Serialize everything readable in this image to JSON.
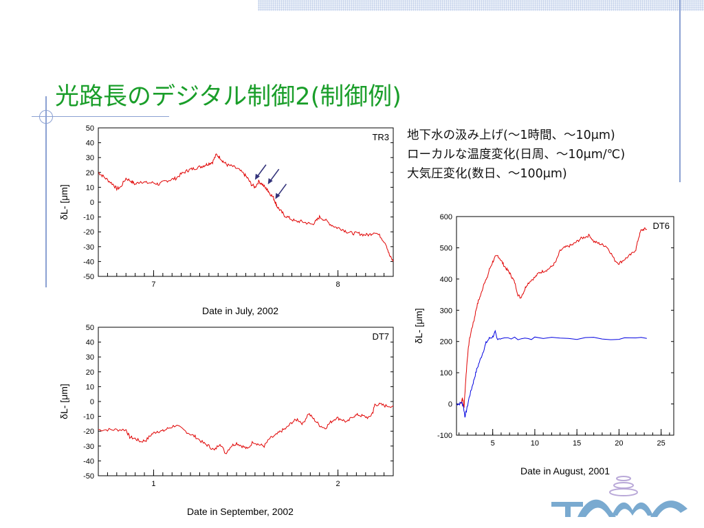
{
  "slide": {
    "title": "光路長のデジタル制御2(制御例)",
    "notes": [
      "地下水の汲み上げ(〜1時間、〜10μm)",
      "ローカルな温度変化(日周、〜10μm/℃)",
      "大気圧変化(数日、〜100μm)"
    ],
    "logo_color": "#7aaad0",
    "logo_accent": "#b9a8d8"
  },
  "chart_data": [
    {
      "type": "line",
      "id": "tr3",
      "corner_label": "TR3",
      "xlabel": "Date in July, 2002",
      "ylabel": "δL- [μm]",
      "xticks": [
        7,
        8
      ],
      "xlim": [
        6.7,
        8.3
      ],
      "ylim": [
        -50,
        50
      ],
      "yticks": [
        50,
        40,
        30,
        20,
        10,
        0,
        -10,
        -20,
        -30,
        -40,
        -50
      ],
      "grid": false,
      "color": "#e00000",
      "arrow_color": "#33337a",
      "arrows_at": [
        [
          7.55,
          15
        ],
        [
          7.62,
          12
        ],
        [
          7.66,
          2
        ]
      ],
      "series": [
        {
          "x": [
            6.7,
            6.72,
            6.75,
            6.78,
            6.8,
            6.82,
            6.85,
            6.88,
            6.9,
            6.93,
            6.96,
            7.0,
            7.03,
            7.06,
            7.09,
            7.12,
            7.15,
            7.18,
            7.2,
            7.23,
            7.26,
            7.28,
            7.3,
            7.32,
            7.34,
            7.36,
            7.38,
            7.4,
            7.43,
            7.46,
            7.49,
            7.51,
            7.53,
            7.55,
            7.57,
            7.59,
            7.61,
            7.62,
            7.63,
            7.65,
            7.66,
            7.67,
            7.69,
            7.71,
            7.74,
            7.77,
            7.8,
            7.83,
            7.86,
            7.88,
            7.9,
            7.93,
            7.96,
            7.99,
            8.02,
            8.05,
            8.08,
            8.11,
            8.14,
            8.17,
            8.2,
            8.23,
            8.26,
            8.28,
            8.3
          ],
          "y": [
            20,
            18,
            15,
            12,
            9,
            10,
            16,
            14,
            12,
            14,
            13,
            13,
            12,
            14,
            15,
            16,
            19,
            21,
            22,
            23,
            24,
            25,
            26,
            27,
            32,
            30,
            27,
            25,
            24,
            22,
            19,
            16,
            12,
            10,
            14,
            12,
            9,
            8,
            6,
            3,
            0,
            -3,
            -6,
            -9,
            -11,
            -13,
            -13,
            -14,
            -15,
            -13,
            -10,
            -12,
            -15,
            -17,
            -18,
            -20,
            -21,
            -21,
            -22,
            -22,
            -20,
            -23,
            -28,
            -36,
            -40
          ]
        }
      ]
    },
    {
      "type": "line",
      "id": "dt7",
      "corner_label": "DT7",
      "xlabel": "Date in September, 2002",
      "ylabel": "δL- [μm]",
      "xticks": [
        1,
        2
      ],
      "xlim": [
        0.7,
        2.3
      ],
      "ylim": [
        -50,
        50
      ],
      "yticks": [
        50,
        40,
        30,
        20,
        10,
        0,
        -10,
        -20,
        -30,
        -40,
        -50
      ],
      "grid": false,
      "color": "#e00000",
      "series": [
        {
          "x": [
            0.7,
            0.75,
            0.8,
            0.85,
            0.87,
            0.9,
            0.93,
            0.96,
            0.99,
            1.02,
            1.05,
            1.08,
            1.12,
            1.16,
            1.2,
            1.23,
            1.27,
            1.3,
            1.33,
            1.36,
            1.39,
            1.42,
            1.45,
            1.48,
            1.51,
            1.54,
            1.57,
            1.6,
            1.63,
            1.66,
            1.69,
            1.72,
            1.75,
            1.78,
            1.81,
            1.84,
            1.87,
            1.9,
            1.93,
            1.96,
            1.99,
            2.02,
            2.05,
            2.08,
            2.11,
            2.14,
            2.17,
            2.19,
            2.2,
            2.23,
            2.26,
            2.3
          ],
          "y": [
            -19,
            -19,
            -19,
            -19,
            -24,
            -25,
            -27,
            -26,
            -22,
            -20,
            -20,
            -18,
            -16,
            -19,
            -22,
            -24,
            -28,
            -30,
            -33,
            -28,
            -35,
            -30,
            -28,
            -30,
            -32,
            -27,
            -29,
            -30,
            -25,
            -23,
            -20,
            -18,
            -14,
            -12,
            -15,
            -8,
            -12,
            -16,
            -18,
            -14,
            -11,
            -12,
            -14,
            -10,
            -9,
            -10,
            -11,
            -7,
            -2,
            -2,
            -3,
            -3
          ]
        }
      ]
    },
    {
      "type": "line",
      "id": "dt6",
      "corner_label": "DT6",
      "xlabel": "Date in August, 2001",
      "ylabel": "δL- [μm]",
      "xticks": [
        5,
        10,
        15,
        20,
        25
      ],
      "xlim": [
        0.7,
        26.5
      ],
      "ylim": [
        -100,
        600
      ],
      "yticks": [
        600,
        500,
        400,
        300,
        200,
        100,
        0,
        -100
      ],
      "grid": false,
      "series": [
        {
          "color": "#e00000",
          "x": [
            1.2,
            1.4,
            1.6,
            1.8,
            2.0,
            2.2,
            2.5,
            2.8,
            3.0,
            3.3,
            3.6,
            4.0,
            4.3,
            4.6,
            5.0,
            5.3,
            5.6,
            6.0,
            6.3,
            6.7,
            7.0,
            7.3,
            7.6,
            8.0,
            8.3,
            8.7,
            9.0,
            9.5,
            10.0,
            10.5,
            11.0,
            11.5,
            12.0,
            12.5,
            13.0,
            13.5,
            14.0,
            14.5,
            15.0,
            15.5,
            16.0,
            16.5,
            17.0,
            17.5,
            18.0,
            18.5,
            19.0,
            19.5,
            20.0,
            20.5,
            21.0,
            21.5,
            22.0,
            22.3,
            22.6,
            23.0,
            23.3
          ],
          "y": [
            0,
            20,
            -10,
            80,
            150,
            200,
            240,
            270,
            300,
            330,
            350,
            390,
            400,
            430,
            455,
            470,
            475,
            460,
            445,
            430,
            420,
            405,
            390,
            350,
            340,
            360,
            380,
            395,
            405,
            420,
            425,
            430,
            440,
            455,
            490,
            500,
            505,
            510,
            520,
            530,
            535,
            540,
            520,
            515,
            510,
            505,
            485,
            460,
            450,
            460,
            470,
            480,
            495,
            530,
            555,
            560,
            560
          ]
        },
        {
          "color": "#0000e0",
          "x": [
            0.7,
            1.0,
            1.3,
            1.5,
            1.7,
            1.9,
            2.2,
            2.5,
            2.8,
            3.1,
            3.5,
            3.9,
            4.2,
            4.6,
            5.0,
            5.3,
            5.5,
            6.0,
            8.0,
            10.0,
            15.0,
            20.0,
            23.3
          ],
          "y": [
            0,
            0,
            5,
            -5,
            -40,
            -20,
            20,
            50,
            80,
            110,
            140,
            170,
            195,
            210,
            215,
            230,
            210,
            210,
            210,
            210,
            210,
            210,
            210
          ]
        }
      ]
    }
  ]
}
